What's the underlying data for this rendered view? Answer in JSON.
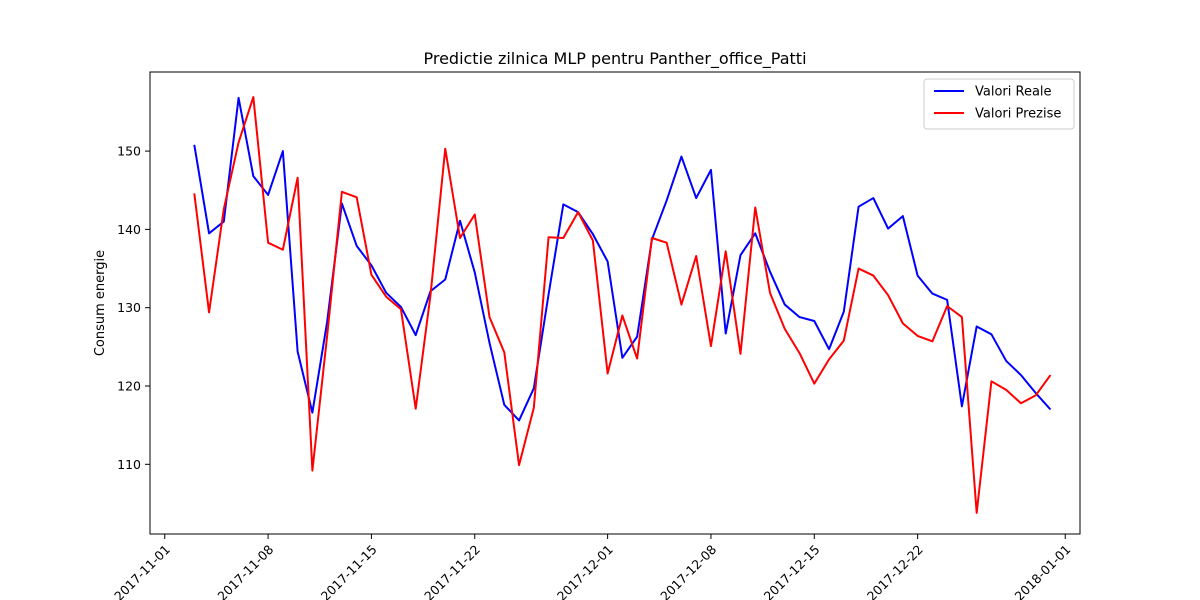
{
  "chart_data": {
    "type": "line",
    "title": "Predictie zilnica MLP pentru Panther_office_Patti",
    "xlabel": "",
    "ylabel": "Consum energie",
    "x_type": "date",
    "x_start": "2017-11-03",
    "x_end": "2017-12-31",
    "xlim": [
      "2017-10-31",
      "2018-01-02"
    ],
    "ylim": [
      101.1,
      160.1
    ],
    "x_ticks": [
      "2017-11-01",
      "2017-11-08",
      "2017-11-15",
      "2017-11-22",
      "2017-12-01",
      "2017-12-08",
      "2017-12-15",
      "2017-12-22",
      "2018-01-01"
    ],
    "y_ticks": [
      110,
      120,
      130,
      140,
      150
    ],
    "legend_position": "top-right",
    "grid": false,
    "series": [
      {
        "name": "Valori Reale",
        "color": "#0000ff",
        "values": [
          150.8,
          139.5,
          141.0,
          156.8,
          146.8,
          144.4,
          150.0,
          124.4,
          116.6,
          128.2,
          143.3,
          137.9,
          135.4,
          131.9,
          130.1,
          126.5,
          132.1,
          133.6,
          141.1,
          134.5,
          125.5,
          117.6,
          115.6,
          119.7,
          131.7,
          143.2,
          142.2,
          139.4,
          135.9,
          123.6,
          126.3,
          138.7,
          143.7,
          149.3,
          144.0,
          147.6,
          126.7,
          136.7,
          139.5,
          134.6,
          130.4,
          128.8,
          128.3,
          124.7,
          129.5,
          142.9,
          144.0,
          140.1,
          141.7,
          134.1,
          131.8,
          131.0,
          117.4,
          127.6,
          126.6,
          123.2,
          121.4,
          119.1,
          117.0
        ]
      },
      {
        "name": "Valori Prezise",
        "color": "#ff0000",
        "values": [
          144.6,
          129.4,
          142.6,
          151.1,
          156.9,
          138.3,
          137.4,
          146.6,
          109.2,
          126.4,
          144.8,
          144.1,
          134.2,
          131.4,
          129.8,
          117.1,
          131.6,
          150.3,
          138.9,
          141.9,
          128.8,
          124.3,
          109.9,
          117.2,
          139.0,
          138.9,
          142.2,
          138.6,
          121.6,
          129.0,
          123.5,
          138.9,
          138.3,
          130.4,
          136.6,
          125.1,
          137.2,
          124.1,
          142.8,
          131.9,
          127.3,
          124.2,
          120.3,
          123.4,
          125.8,
          135.0,
          134.1,
          131.6,
          128.0,
          126.4,
          125.7,
          130.2,
          128.8,
          103.8,
          120.6,
          119.5,
          117.8,
          118.8,
          121.4
        ]
      }
    ]
  }
}
